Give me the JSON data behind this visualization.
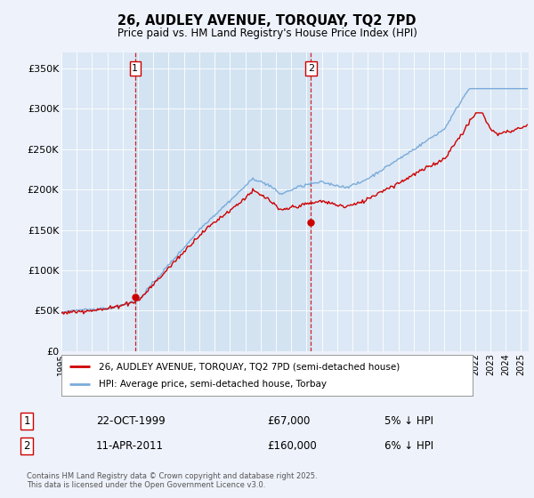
{
  "title": "26, AUDLEY AVENUE, TORQUAY, TQ2 7PD",
  "subtitle": "Price paid vs. HM Land Registry's House Price Index (HPI)",
  "background_color": "#eef2fb",
  "plot_bg_color": "#dce8f5",
  "plot_bg_between": "#ccdff0",
  "ylim": [
    0,
    370000
  ],
  "yticks": [
    0,
    50000,
    100000,
    150000,
    200000,
    250000,
    300000,
    350000
  ],
  "ytick_labels": [
    "£0",
    "£50K",
    "£100K",
    "£150K",
    "£200K",
    "£250K",
    "£300K",
    "£350K"
  ],
  "sale1_x": 1999.81,
  "sale1_y": 67000,
  "sale1_label": "1",
  "sale1_date": "22-OCT-1999",
  "sale1_price": "£67,000",
  "sale1_hpi": "5% ↓ HPI",
  "sale2_x": 2011.28,
  "sale2_y": 160000,
  "sale2_label": "2",
  "sale2_date": "11-APR-2011",
  "sale2_price": "£160,000",
  "sale2_hpi": "6% ↓ HPI",
  "legend_line1": "26, AUDLEY AVENUE, TORQUAY, TQ2 7PD (semi-detached house)",
  "legend_line2": "HPI: Average price, semi-detached house, Torbay",
  "footer": "Contains HM Land Registry data © Crown copyright and database right 2025.\nThis data is licensed under the Open Government Licence v3.0.",
  "line_red_color": "#cc0000",
  "line_blue_color": "#7aabda",
  "vline_color": "#cc0000",
  "xmin": 1995,
  "xmax": 2025.5
}
